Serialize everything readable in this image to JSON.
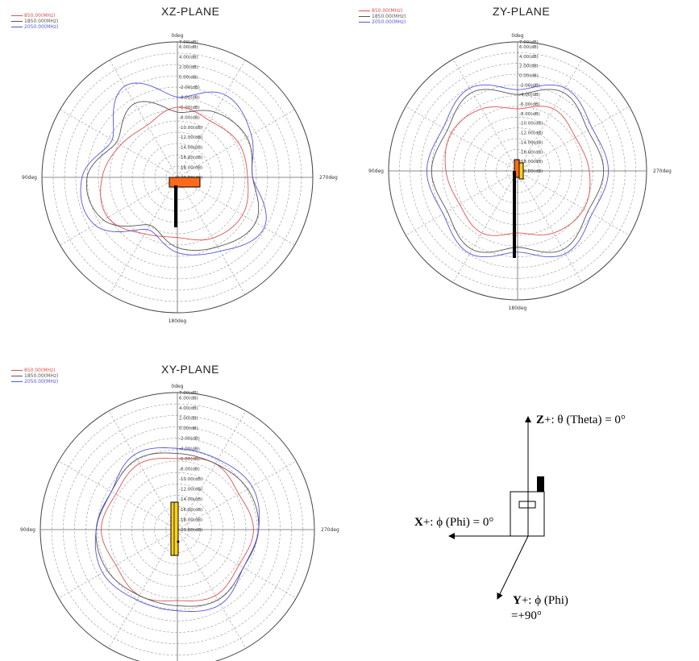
{
  "plots": [
    {
      "id": "xz",
      "title": "XZ-PLANE",
      "angle_labels": {
        "top": "0deg",
        "left": "90deg",
        "right": "270deg",
        "bottom": "180deg"
      },
      "legend": [
        {
          "label": "850.00(MHz)",
          "color": "#e05050"
        },
        {
          "label": "1850.00(MHz)",
          "color": "#555555"
        },
        {
          "label": "2050.00(MHz)",
          "color": "#5555dd"
        }
      ]
    },
    {
      "id": "zy",
      "title": "ZY-PLANE",
      "angle_labels": {
        "top": "0deg",
        "left": "90deg",
        "right": "270deg",
        "bottom": "180deg"
      },
      "legend": [
        {
          "label": "850.00(MHz)",
          "color": "#e05050"
        },
        {
          "label": "1850.00(MHz)",
          "color": "#555555"
        },
        {
          "label": "2050.00(MHz)",
          "color": "#5555dd"
        }
      ]
    },
    {
      "id": "xy",
      "title": "XY-PLANE",
      "angle_labels": {
        "top": "0deg",
        "left": "90deg",
        "right": "270deg",
        "bottom": ""
      },
      "legend": [
        {
          "label": "850.00(MHz)",
          "color": "#e05050"
        },
        {
          "label": "1850.00(MHz)",
          "color": "#555555"
        },
        {
          "label": "2050.00(MHz)",
          "color": "#5555dd"
        }
      ]
    }
  ],
  "radial_ticks": [
    "7.00(dB)",
    "6.00(dB)",
    "4.00(dB)",
    "2.00(dB)",
    "0.00(dB)",
    "-2.00(dB)",
    "-4.00(dB)",
    "-6.00(dB)",
    "-8.00(dB)",
    "-10.00(dB)",
    "-12.00(dB)",
    "-14.00(dB)",
    "-16.00(dB)",
    "-18.00(dB)",
    "-20.00(dB)"
  ],
  "chart_data": [
    {
      "type": "polar",
      "title": "XZ-PLANE",
      "r_range_db": [
        -20,
        7
      ],
      "theta_step_deg": 30,
      "angle_direction": "counter-clockwise from top",
      "series": [
        {
          "name": "850.00(MHz)",
          "color": "#e05050",
          "theta_deg": [
            0,
            30,
            60,
            90,
            120,
            150,
            180,
            210,
            240,
            270,
            300,
            330
          ],
          "r_db": [
            -6,
            -8,
            -7,
            -5,
            -4,
            -7,
            -8,
            -6,
            -5,
            -6,
            -6,
            -7
          ]
        },
        {
          "name": "1850.00(MHz)",
          "color": "#555555",
          "theta_deg": [
            0,
            30,
            60,
            90,
            120,
            150,
            180,
            210,
            240,
            270,
            300,
            330
          ],
          "r_db": [
            -7,
            -3,
            -6,
            -2,
            -3,
            -9,
            -6,
            -4,
            -2,
            -5,
            -4,
            -5
          ]
        },
        {
          "name": "2050.00(MHz)",
          "color": "#5555dd",
          "theta_deg": [
            0,
            30,
            60,
            90,
            120,
            150,
            180,
            210,
            240,
            270,
            300,
            330
          ],
          "r_db": [
            -4,
            1,
            -5,
            -1,
            -1,
            -8,
            -5,
            -3,
            0,
            -5,
            -3,
            -1
          ]
        }
      ]
    },
    {
      "type": "polar",
      "title": "ZY-PLANE",
      "r_range_db": [
        -20,
        7
      ],
      "theta_step_deg": 30,
      "angle_direction": "counter-clockwise from top",
      "series": [
        {
          "name": "850.00(MHz)",
          "color": "#e05050",
          "theta_deg": [
            0,
            30,
            60,
            90,
            120,
            150,
            180,
            210,
            240,
            270,
            300,
            330
          ],
          "r_db": [
            -7,
            -5,
            -4,
            -5,
            -6,
            -5,
            -7,
            -5,
            -4,
            -5,
            -6,
            -5
          ]
        },
        {
          "name": "1850.00(MHz)",
          "color": "#555555",
          "theta_deg": [
            0,
            30,
            60,
            90,
            120,
            150,
            180,
            210,
            240,
            270,
            300,
            330
          ],
          "r_db": [
            -4,
            -1,
            -3,
            -2,
            -3,
            -1,
            -4,
            -1,
            -3,
            -2,
            -3,
            -1
          ]
        },
        {
          "name": "2050.00(MHz)",
          "color": "#5555dd",
          "theta_deg": [
            0,
            30,
            60,
            90,
            120,
            150,
            180,
            210,
            240,
            270,
            300,
            330
          ],
          "r_db": [
            -3,
            0,
            -2,
            -1,
            -2,
            0,
            -3,
            0,
            -2,
            -1,
            -2,
            0
          ]
        }
      ]
    },
    {
      "type": "polar",
      "title": "XY-PLANE",
      "r_range_db": [
        -20,
        7
      ],
      "theta_step_deg": 30,
      "angle_direction": "counter-clockwise from top",
      "series": [
        {
          "name": "850.00(MHz)",
          "color": "#e05050",
          "theta_deg": [
            0,
            30,
            60,
            90,
            120,
            150,
            180,
            210,
            240,
            270,
            300,
            330
          ],
          "r_db": [
            -6,
            -5,
            -6,
            -5,
            -6,
            -5,
            -6,
            -5,
            -6,
            -5,
            -6,
            -5
          ]
        },
        {
          "name": "1850.00(MHz)",
          "color": "#555555",
          "theta_deg": [
            0,
            30,
            60,
            90,
            120,
            150,
            180,
            210,
            240,
            270,
            300,
            330
          ],
          "r_db": [
            -5,
            -4,
            -5,
            -4,
            -4,
            -5,
            -5,
            -4,
            -5,
            -4,
            -4,
            -5
          ]
        },
        {
          "name": "2050.00(MHz)",
          "color": "#5555dd",
          "theta_deg": [
            0,
            30,
            60,
            90,
            120,
            150,
            180,
            210,
            240,
            270,
            300,
            330
          ],
          "r_db": [
            -4,
            -3,
            -5,
            -4,
            -3,
            -4,
            -4,
            -3,
            -5,
            -4,
            -3,
            -4
          ]
        }
      ]
    }
  ],
  "axes_diagram": {
    "z_axis_bold": "Z",
    "z_axis_text": "+: θ (Theta) = 0°",
    "x_axis_bold": "X",
    "x_axis_text": "+: ϕ (Phi) = 0°",
    "y_axis_bold": "Y",
    "y_axis_text_line1": "+: ϕ (Phi)",
    "y_axis_text_line2": "=+90°"
  }
}
